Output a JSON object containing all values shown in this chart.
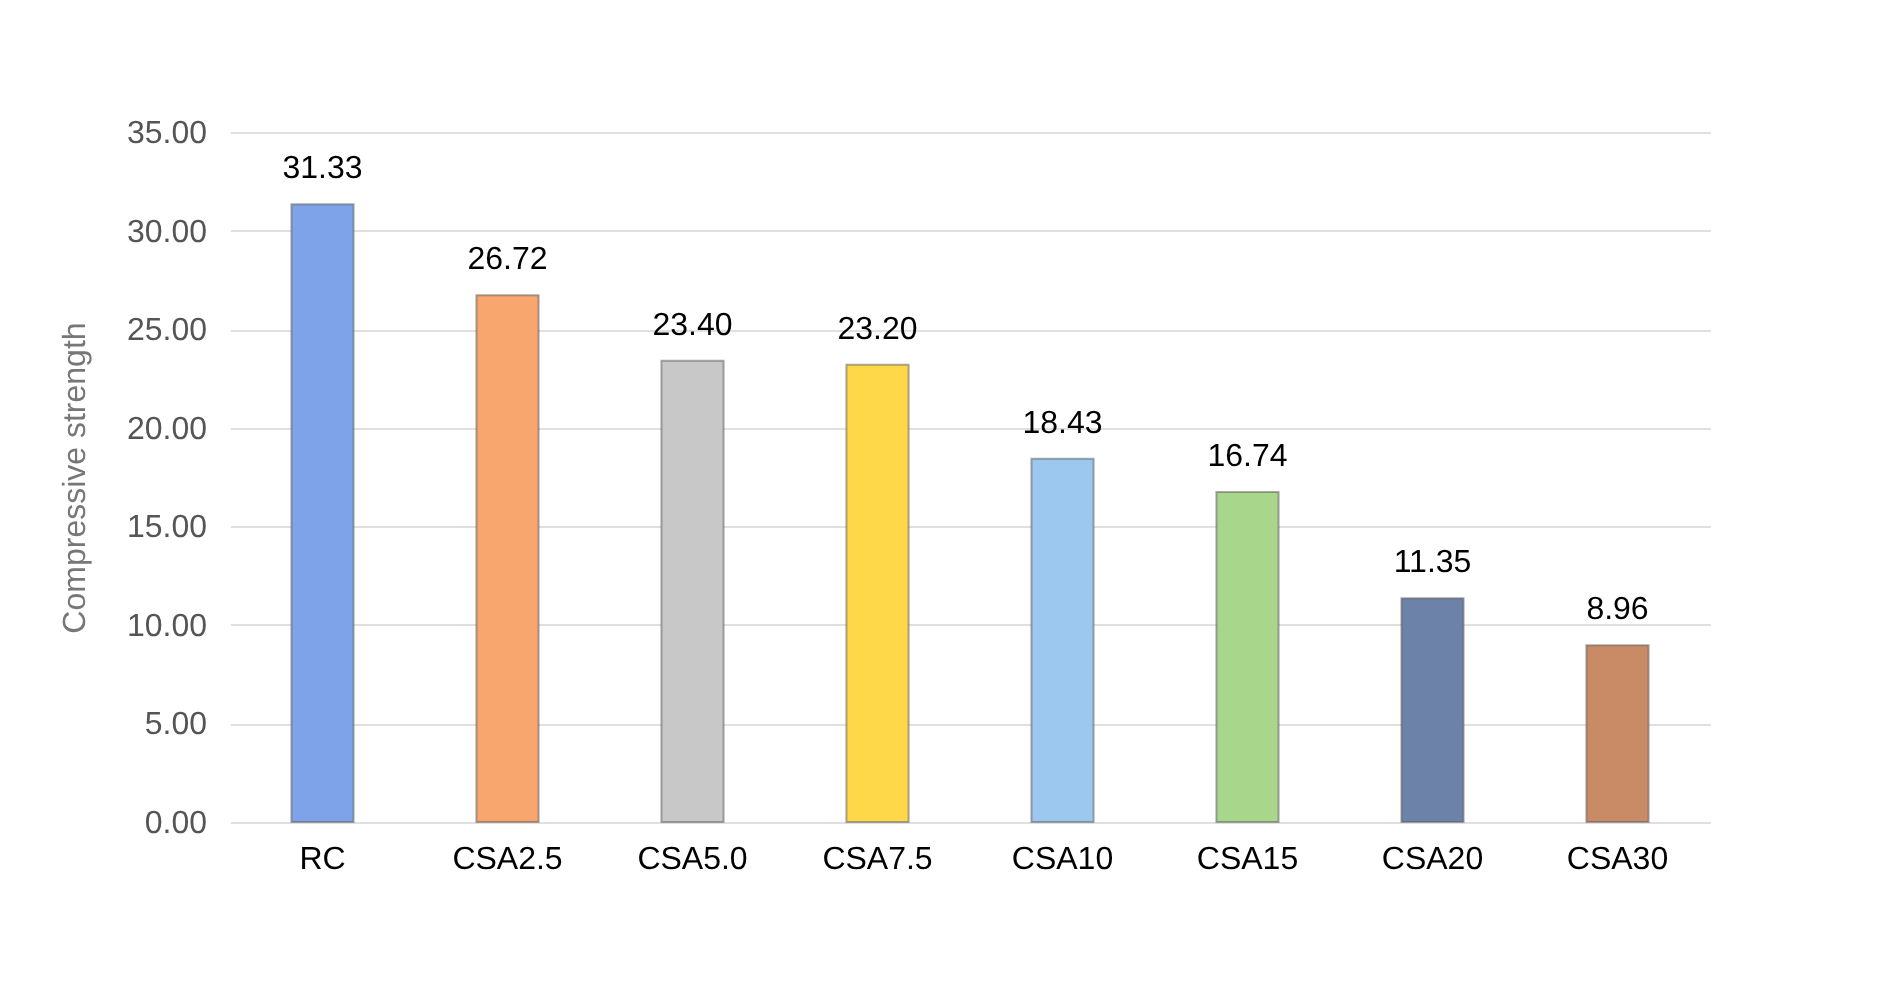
{
  "chart_data": {
    "type": "bar",
    "ylabel": "Compressive strength",
    "categories": [
      "RC",
      "CSA2.5",
      "CSA5.0",
      "CSA7.5",
      "CSA10",
      "CSA15",
      "CSA20",
      "CSA30"
    ],
    "values": [
      31.33,
      26.72,
      23.4,
      23.2,
      18.43,
      16.74,
      11.35,
      8.96
    ],
    "value_labels": [
      "31.33",
      "26.72",
      "23.40",
      "23.20",
      "18.43",
      "16.74",
      "11.35",
      "8.96"
    ],
    "colors": [
      "#7ea3e8",
      "#f9a66e",
      "#c8c8c8",
      "#ffd84a",
      "#9cc8f0",
      "#a8d68a",
      "#6c82a8",
      "#c98a66"
    ],
    "ylim": [
      0,
      35
    ],
    "yticks": [
      {
        "value": 0,
        "label": "0.00"
      },
      {
        "value": 5,
        "label": "5.00"
      },
      {
        "value": 10,
        "label": "10.00"
      },
      {
        "value": 15,
        "label": "15.00"
      },
      {
        "value": 20,
        "label": "20.00"
      },
      {
        "value": 25,
        "label": "25.00"
      },
      {
        "value": 30,
        "label": "30.00"
      },
      {
        "value": 35,
        "label": "35.00"
      }
    ],
    "grid": "y"
  }
}
